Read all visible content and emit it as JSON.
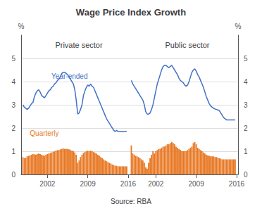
{
  "title": "Wage Price Index Growth",
  "source": "Source: RBA",
  "chart_data": [
    {
      "type": "bar",
      "title": "Private sector",
      "ylabel": "%",
      "x": [
        1997.75,
        1998,
        1998.25,
        1998.5,
        1998.75,
        1999,
        1999.25,
        1999.5,
        1999.75,
        2000,
        2000.25,
        2000.5,
        2000.75,
        2001,
        2001.25,
        2001.5,
        2001.75,
        2002,
        2002.25,
        2002.5,
        2002.75,
        2003,
        2003.25,
        2003.5,
        2003.75,
        2004,
        2004.25,
        2004.5,
        2004.75,
        2005,
        2005.25,
        2005.5,
        2005.75,
        2006,
        2006.25,
        2006.5,
        2006.75,
        2007,
        2007.25,
        2007.5,
        2007.75,
        2008,
        2008.25,
        2008.5,
        2008.75,
        2009,
        2009.25,
        2009.5,
        2009.75,
        2010,
        2010.25,
        2010.5,
        2010.75,
        2011,
        2011.25,
        2011.5,
        2011.75,
        2012,
        2012.25,
        2012.5,
        2012.75,
        2013,
        2013.25,
        2013.5,
        2013.75,
        2014,
        2014.25,
        2014.5,
        2014.75,
        2015,
        2015.25,
        2015.5,
        2015.75
      ],
      "series": [
        {
          "type": "bar",
          "color": "#E87722",
          "values": [
            0.75,
            0.7,
            0.72,
            0.78,
            0.8,
            0.82,
            0.85,
            0.88,
            0.87,
            0.85,
            0.88,
            0.9,
            0.88,
            0.85,
            0.82,
            0.8,
            0.85,
            0.88,
            0.9,
            0.92,
            0.95,
            0.97,
            1.0,
            1.02,
            1.05,
            1.05,
            1.08,
            1.1,
            1.12,
            1.1,
            1.1,
            1.1,
            1.08,
            1.05,
            1.02,
            1.0,
            0.95,
            0.85,
            0.5,
            0.6,
            0.75,
            0.85,
            0.92,
            0.97,
            1.0,
            1.02,
            1.0,
            1.02,
            1.0,
            0.97,
            0.93,
            0.9,
            0.85,
            0.8,
            0.75,
            0.7,
            0.65,
            0.6,
            0.57,
            0.53,
            0.5,
            0.47,
            0.43,
            0.4,
            0.38,
            0.37,
            0.35,
            0.35,
            0.35,
            0.35,
            0.35,
            0.35,
            0.35
          ]
        },
        {
          "type": "line",
          "color": "#4472C4",
          "values": [
            3.0,
            2.9,
            2.85,
            2.8,
            2.85,
            2.95,
            3.05,
            3.1,
            3.35,
            3.5,
            3.6,
            3.65,
            3.55,
            3.4,
            3.35,
            3.3,
            3.4,
            3.5,
            3.6,
            3.65,
            3.75,
            3.8,
            3.9,
            3.95,
            4.05,
            4.1,
            4.2,
            4.35,
            4.4,
            4.4,
            4.35,
            4.3,
            4.2,
            4.1,
            4.0,
            3.9,
            3.65,
            3.2,
            2.6,
            2.65,
            2.8,
            3.0,
            3.4,
            3.6,
            3.75,
            3.85,
            3.8,
            3.9,
            3.8,
            3.75,
            3.6,
            3.45,
            3.3,
            3.15,
            3.0,
            2.85,
            2.7,
            2.55,
            2.4,
            2.3,
            2.2,
            2.1,
            2.0,
            1.9,
            1.85,
            1.9,
            1.85,
            1.85,
            1.85,
            1.85,
            1.85,
            1.85,
            1.85
          ]
        }
      ],
      "annotations": [
        {
          "text": "Year-ended",
          "color": "#4472C4"
        },
        {
          "text": "Quarterly",
          "color": "#E87722"
        }
      ],
      "xlim": [
        1997.45,
        2016.25
      ],
      "xticks": [
        2002,
        2009,
        2016
      ],
      "ylim": [
        0,
        6
      ],
      "yticks": [
        0,
        1,
        2,
        3,
        4,
        5
      ],
      "grid": true
    },
    {
      "type": "bar",
      "title": "Public sector",
      "ylabel": "%",
      "x": [
        1997.75,
        1998,
        1998.25,
        1998.5,
        1998.75,
        1999,
        1999.25,
        1999.5,
        1999.75,
        2000,
        2000.25,
        2000.5,
        2000.75,
        2001,
        2001.25,
        2001.5,
        2001.75,
        2002,
        2002.25,
        2002.5,
        2002.75,
        2003,
        2003.25,
        2003.5,
        2003.75,
        2004,
        2004.25,
        2004.5,
        2004.75,
        2005,
        2005.25,
        2005.5,
        2005.75,
        2006,
        2006.25,
        2006.5,
        2006.75,
        2007,
        2007.25,
        2007.5,
        2007.75,
        2008,
        2008.25,
        2008.5,
        2008.75,
        2009,
        2009.25,
        2009.5,
        2009.75,
        2010,
        2010.25,
        2010.5,
        2010.75,
        2011,
        2011.25,
        2011.5,
        2011.75,
        2012,
        2012.25,
        2012.5,
        2012.75,
        2013,
        2013.25,
        2013.5,
        2013.75,
        2014,
        2014.25,
        2014.5,
        2014.75,
        2015,
        2015.25,
        2015.5,
        2015.75
      ],
      "series": [
        {
          "type": "bar",
          "color": "#E87722",
          "values": [
            1.25,
            0.9,
            0.85,
            0.8,
            0.78,
            0.75,
            0.7,
            0.65,
            0.6,
            0.5,
            0.3,
            0.25,
            0.5,
            0.7,
            0.85,
            1.0,
            0.9,
            1.0,
            1.05,
            1.1,
            1.1,
            1.15,
            1.2,
            1.2,
            1.25,
            1.3,
            1.3,
            1.35,
            1.4,
            1.35,
            1.3,
            1.2,
            1.15,
            1.1,
            1.05,
            1.0,
            1.0,
            1.0,
            1.0,
            1.05,
            1.1,
            1.15,
            1.2,
            1.35,
            1.4,
            1.3,
            1.15,
            1.1,
            1.05,
            1.0,
            0.95,
            0.9,
            0.85,
            0.82,
            0.8,
            0.78,
            0.78,
            0.78,
            0.75,
            0.75,
            0.72,
            0.7,
            0.68,
            0.65,
            0.65,
            0.65,
            0.65,
            0.65,
            0.65,
            0.65,
            0.65,
            0.65,
            0.65
          ]
        },
        {
          "type": "line",
          "color": "#4472C4",
          "values": [
            4.05,
            3.9,
            3.8,
            3.7,
            3.6,
            3.5,
            3.4,
            3.3,
            3.2,
            3.0,
            2.7,
            2.6,
            2.6,
            2.65,
            2.8,
            3.0,
            3.3,
            3.6,
            3.9,
            4.1,
            4.3,
            4.5,
            4.65,
            4.7,
            4.7,
            4.65,
            4.6,
            4.65,
            4.7,
            4.6,
            4.5,
            4.4,
            4.3,
            4.15,
            4.05,
            4.0,
            3.95,
            3.85,
            3.8,
            3.85,
            4.0,
            4.2,
            4.4,
            4.5,
            4.55,
            4.45,
            4.3,
            4.2,
            4.05,
            3.9,
            3.75,
            3.55,
            3.35,
            3.2,
            3.05,
            2.95,
            2.9,
            2.85,
            2.82,
            2.8,
            2.78,
            2.75,
            2.65,
            2.55,
            2.45,
            2.4,
            2.35,
            2.35,
            2.35,
            2.35,
            2.35,
            2.35,
            2.35
          ]
        }
      ],
      "xlim": [
        1997.45,
        2016.25
      ],
      "xticks": [
        2002,
        2009,
        2016
      ],
      "ylim": [
        0,
        6
      ],
      "yticks": [
        0,
        1,
        2,
        3,
        4,
        5
      ],
      "grid": true
    }
  ]
}
